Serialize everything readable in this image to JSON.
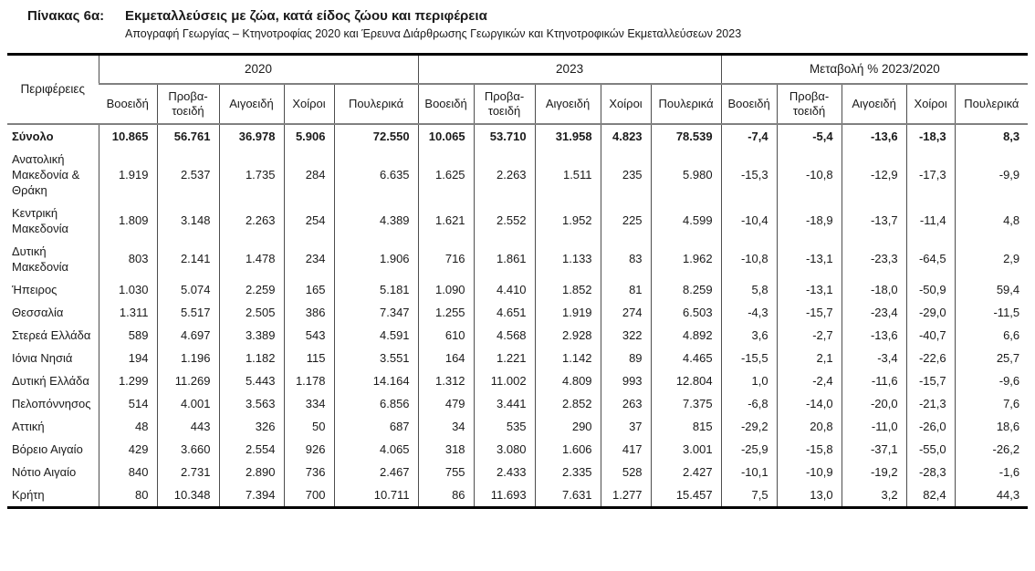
{
  "header": {
    "table_label": "Πίνακας 6α:",
    "title": "Εκμεταλλεύσεις με ζώα, κατά είδος ζώου και περιφέρεια",
    "subtitle": "Απογραφή Γεωργίας – Κτηνοτροφίας 2020 και Έρευνα Διάρθρωσης Γεωργικών και Κτηνοτροφικών Εκμεταλλεύσεων 2023"
  },
  "table": {
    "region_header": "Περιφέρειες",
    "groups": [
      {
        "label": "2020"
      },
      {
        "label": "2023"
      },
      {
        "label": "Μεταβολή % 2023/2020"
      }
    ],
    "species": [
      "Βοοειδή",
      "Προβα-τοειδή",
      "Αιγοειδή",
      "Χοίροι",
      "Πουλερικά"
    ],
    "rows": [
      {
        "region": "Σύνολο",
        "bold": true,
        "y2020": [
          "10.865",
          "56.761",
          "36.978",
          "5.906",
          "72.550"
        ],
        "y2023": [
          "10.065",
          "53.710",
          "31.958",
          "4.823",
          "78.539"
        ],
        "change": [
          "-7,4",
          "-5,4",
          "-13,6",
          "-18,3",
          "8,3"
        ]
      },
      {
        "region": "Ανατολική Μακεδονία & Θράκη",
        "bold": false,
        "y2020": [
          "1.919",
          "2.537",
          "1.735",
          "284",
          "6.635"
        ],
        "y2023": [
          "1.625",
          "2.263",
          "1.511",
          "235",
          "5.980"
        ],
        "change": [
          "-15,3",
          "-10,8",
          "-12,9",
          "-17,3",
          "-9,9"
        ]
      },
      {
        "region": "Κεντρική Μακεδονία",
        "bold": false,
        "y2020": [
          "1.809",
          "3.148",
          "2.263",
          "254",
          "4.389"
        ],
        "y2023": [
          "1.621",
          "2.552",
          "1.952",
          "225",
          "4.599"
        ],
        "change": [
          "-10,4",
          "-18,9",
          "-13,7",
          "-11,4",
          "4,8"
        ]
      },
      {
        "region": "Δυτική Μακεδονία",
        "bold": false,
        "y2020": [
          "803",
          "2.141",
          "1.478",
          "234",
          "1.906"
        ],
        "y2023": [
          "716",
          "1.861",
          "1.133",
          "83",
          "1.962"
        ],
        "change": [
          "-10,8",
          "-13,1",
          "-23,3",
          "-64,5",
          "2,9"
        ]
      },
      {
        "region": "Ήπειρος",
        "bold": false,
        "y2020": [
          "1.030",
          "5.074",
          "2.259",
          "165",
          "5.181"
        ],
        "y2023": [
          "1.090",
          "4.410",
          "1.852",
          "81",
          "8.259"
        ],
        "change": [
          "5,8",
          "-13,1",
          "-18,0",
          "-50,9",
          "59,4"
        ]
      },
      {
        "region": "Θεσσαλία",
        "bold": false,
        "y2020": [
          "1.311",
          "5.517",
          "2.505",
          "386",
          "7.347"
        ],
        "y2023": [
          "1.255",
          "4.651",
          "1.919",
          "274",
          "6.503"
        ],
        "change": [
          "-4,3",
          "-15,7",
          "-23,4",
          "-29,0",
          "-11,5"
        ]
      },
      {
        "region": "Στερεά Ελλάδα",
        "bold": false,
        "y2020": [
          "589",
          "4.697",
          "3.389",
          "543",
          "4.591"
        ],
        "y2023": [
          "610",
          "4.568",
          "2.928",
          "322",
          "4.892"
        ],
        "change": [
          "3,6",
          "-2,7",
          "-13,6",
          "-40,7",
          "6,6"
        ]
      },
      {
        "region": "Ιόνια Νησιά",
        "bold": false,
        "y2020": [
          "194",
          "1.196",
          "1.182",
          "115",
          "3.551"
        ],
        "y2023": [
          "164",
          "1.221",
          "1.142",
          "89",
          "4.465"
        ],
        "change": [
          "-15,5",
          "2,1",
          "-3,4",
          "-22,6",
          "25,7"
        ]
      },
      {
        "region": "Δυτική Ελλάδα",
        "bold": false,
        "y2020": [
          "1.299",
          "11.269",
          "5.443",
          "1.178",
          "14.164"
        ],
        "y2023": [
          "1.312",
          "11.002",
          "4.809",
          "993",
          "12.804"
        ],
        "change": [
          "1,0",
          "-2,4",
          "-11,6",
          "-15,7",
          "-9,6"
        ]
      },
      {
        "region": "Πελοπόννησος",
        "bold": false,
        "y2020": [
          "514",
          "4.001",
          "3.563",
          "334",
          "6.856"
        ],
        "y2023": [
          "479",
          "3.441",
          "2.852",
          "263",
          "7.375"
        ],
        "change": [
          "-6,8",
          "-14,0",
          "-20,0",
          "-21,3",
          "7,6"
        ]
      },
      {
        "region": "Αττική",
        "bold": false,
        "y2020": [
          "48",
          "443",
          "326",
          "50",
          "687"
        ],
        "y2023": [
          "34",
          "535",
          "290",
          "37",
          "815"
        ],
        "change": [
          "-29,2",
          "20,8",
          "-11,0",
          "-26,0",
          "18,6"
        ]
      },
      {
        "region": "Βόρειο Αιγαίο",
        "bold": false,
        "y2020": [
          "429",
          "3.660",
          "2.554",
          "926",
          "4.065"
        ],
        "y2023": [
          "318",
          "3.080",
          "1.606",
          "417",
          "3.001"
        ],
        "change": [
          "-25,9",
          "-15,8",
          "-37,1",
          "-55,0",
          "-26,2"
        ]
      },
      {
        "region": "Νότιο Αιγαίο",
        "bold": false,
        "y2020": [
          "840",
          "2.731",
          "2.890",
          "736",
          "2.467"
        ],
        "y2023": [
          "755",
          "2.433",
          "2.335",
          "528",
          "2.427"
        ],
        "change": [
          "-10,1",
          "-10,9",
          "-19,2",
          "-28,3",
          "-1,6"
        ]
      },
      {
        "region": "Κρήτη",
        "bold": false,
        "y2020": [
          "80",
          "10.348",
          "7.394",
          "700",
          "10.711"
        ],
        "y2023": [
          "86",
          "11.693",
          "7.631",
          "1.277",
          "15.457"
        ],
        "change": [
          "7,5",
          "13,0",
          "3,2",
          "82,4",
          "44,3"
        ]
      }
    ]
  }
}
